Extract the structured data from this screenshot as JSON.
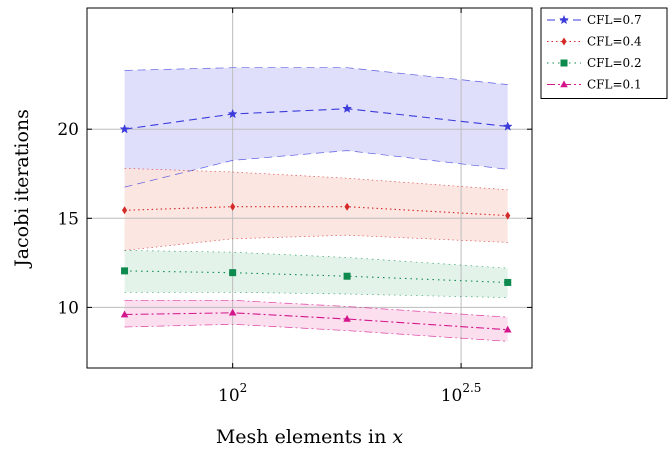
{
  "chart_data": {
    "type": "line",
    "xlabel_text": "Mesh elements in ",
    "xlabel_var": "x",
    "ylabel": "Jacobi iterations",
    "x_scale": "log10",
    "xlim": [
      48,
      452
    ],
    "ylim": [
      6.6,
      26.8
    ],
    "x_ticks": [
      {
        "value": 100,
        "base": "10",
        "exp": "2"
      },
      {
        "value": 316.2,
        "base": "10",
        "exp": "2.5"
      }
    ],
    "y_ticks": [
      10,
      15,
      20
    ],
    "grid": true,
    "legend_position": "outside-top-right",
    "x": [
      58,
      100,
      178,
      400
    ],
    "series": [
      {
        "name": "CFL=0.7",
        "color": "#3b3bdb",
        "fill": "#dcdcfb",
        "dash": "8,5",
        "marker": "star",
        "mean": [
          20.0,
          20.85,
          21.15,
          20.15
        ],
        "upper": [
          23.3,
          23.45,
          23.45,
          22.5
        ],
        "lower": [
          16.75,
          18.25,
          18.8,
          17.75
        ]
      },
      {
        "name": "CFL=0.4",
        "color": "#d42a2a",
        "fill": "#fbe3de",
        "dash": "1.5,3",
        "marker": "diamond",
        "mean": [
          15.45,
          15.65,
          15.65,
          15.15
        ],
        "upper": [
          17.8,
          17.6,
          17.25,
          16.6
        ],
        "lower": [
          13.2,
          13.85,
          14.05,
          13.65
        ]
      },
      {
        "name": "CFL=0.2",
        "color": "#0e8a4f",
        "fill": "#e0f2e7",
        "dash": "1.5,4",
        "marker": "square",
        "mean": [
          12.05,
          11.95,
          11.75,
          11.4
        ],
        "upper": [
          13.2,
          13.1,
          12.8,
          12.2
        ],
        "lower": [
          10.85,
          10.85,
          10.75,
          10.55
        ]
      },
      {
        "name": "CFL=0.1",
        "color": "#d4168c",
        "fill": "#fbdcec",
        "dash": "8,3,2,3",
        "marker": "triangle",
        "mean": [
          9.6,
          9.7,
          9.35,
          8.75
        ],
        "upper": [
          10.4,
          10.4,
          10.05,
          9.45
        ],
        "lower": [
          8.9,
          9.05,
          8.7,
          8.1
        ]
      }
    ]
  }
}
